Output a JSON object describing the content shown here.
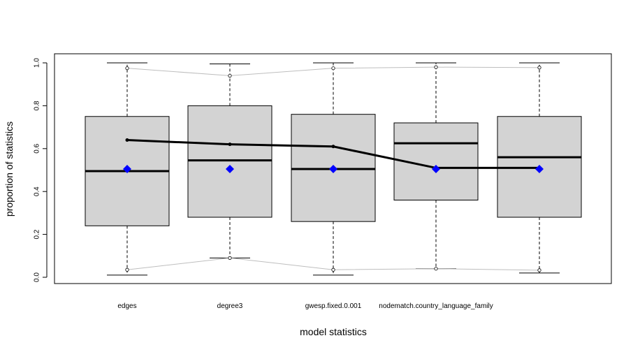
{
  "chart_data": {
    "type": "boxplot",
    "xlabel": "model statistics",
    "ylabel": "proportion of statistics",
    "ylim": [
      0.0,
      1.0
    ],
    "y_ticks": [
      "0.0",
      "0.2",
      "0.4",
      "0.6",
      "0.8",
      "1.0"
    ],
    "categories": [
      "edges",
      "degree3",
      "gwesp.fixed.0.001",
      "nodematch.country_language_family",
      ""
    ],
    "boxes": [
      {
        "min": 0.01,
        "q1": 0.24,
        "median": 0.495,
        "q3": 0.75,
        "max": 1.0
      },
      {
        "min": 0.09,
        "q1": 0.28,
        "median": 0.545,
        "q3": 0.8,
        "max": 0.995
      },
      {
        "min": 0.01,
        "q1": 0.26,
        "median": 0.505,
        "q3": 0.76,
        "max": 1.0
      },
      {
        "min": 0.04,
        "q1": 0.36,
        "median": 0.625,
        "q3": 0.72,
        "max": 1.0
      },
      {
        "min": 0.02,
        "q1": 0.28,
        "median": 0.56,
        "q3": 0.75,
        "max": 1.0
      }
    ],
    "upper_quantile_line": [
      0.975,
      0.94,
      0.975,
      0.98,
      0.978
    ],
    "lower_quantile_line": [
      0.035,
      0.09,
      0.035,
      0.04,
      0.033
    ],
    "observed_line": [
      0.64,
      0.62,
      0.61,
      0.51,
      0.51
    ],
    "observed_markers": [
      0.505,
      0.505,
      0.505,
      0.505,
      0.505
    ],
    "colors": {
      "box_fill": "#d3d3d3",
      "quantile_line": "#bebebe",
      "observed_line": "#000000",
      "marker": "#0000ff"
    },
    "grid": false,
    "legend": "none"
  }
}
